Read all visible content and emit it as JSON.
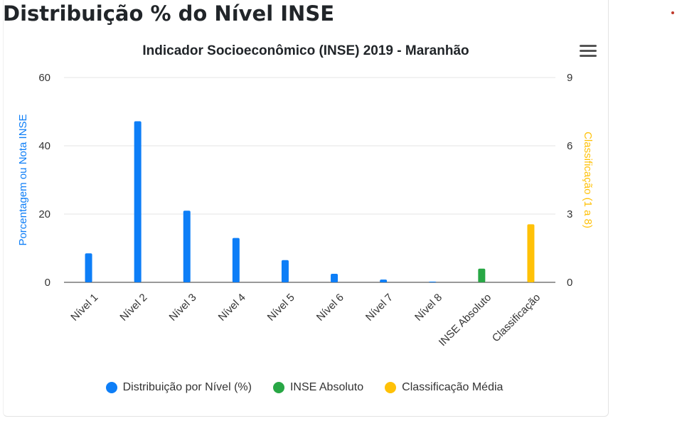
{
  "page": {
    "title": "Distribuição % do Nível INSE"
  },
  "colors": {
    "primary": "#0d7ef7",
    "green": "#28a745",
    "yellow": "#ffc107"
  },
  "menu": {
    "icon": "hamburger-menu-icon"
  },
  "chart_data": {
    "type": "bar",
    "title": "Indicador Socioeconômico (INSE) 2019 - Maranhão",
    "categories": [
      "Nível 1",
      "Nível 2",
      "Nível 3",
      "Nível 4",
      "Nível 5",
      "Nível 6",
      "Nível 7",
      "Nível 8",
      "INSE Absoluto",
      "Classificação"
    ],
    "series": [
      {
        "name": "Distribuição por Nível (%)",
        "axis": "left",
        "color": "#0d7ef7",
        "values": [
          8.5,
          47.2,
          21.0,
          13.0,
          6.5,
          2.5,
          0.8,
          0.1,
          null,
          null
        ]
      },
      {
        "name": "INSE Absoluto",
        "axis": "left",
        "color": "#28a745",
        "values": [
          null,
          null,
          null,
          null,
          null,
          null,
          null,
          null,
          4.0,
          null
        ]
      },
      {
        "name": "Classificação Média",
        "axis": "right",
        "color": "#ffc107",
        "values": [
          null,
          null,
          null,
          null,
          null,
          null,
          null,
          null,
          null,
          2.55
        ]
      }
    ],
    "ylabel": "Porcentagem ou Nota INSE",
    "y2label": "Classificação (1 a 8)",
    "ylim": [
      0,
      60
    ],
    "y2lim": [
      0,
      9
    ],
    "yticks": [
      0,
      20,
      40,
      60
    ],
    "y2ticks": [
      0,
      3,
      6,
      9
    ],
    "grid": true,
    "legend_position": "bottom"
  }
}
